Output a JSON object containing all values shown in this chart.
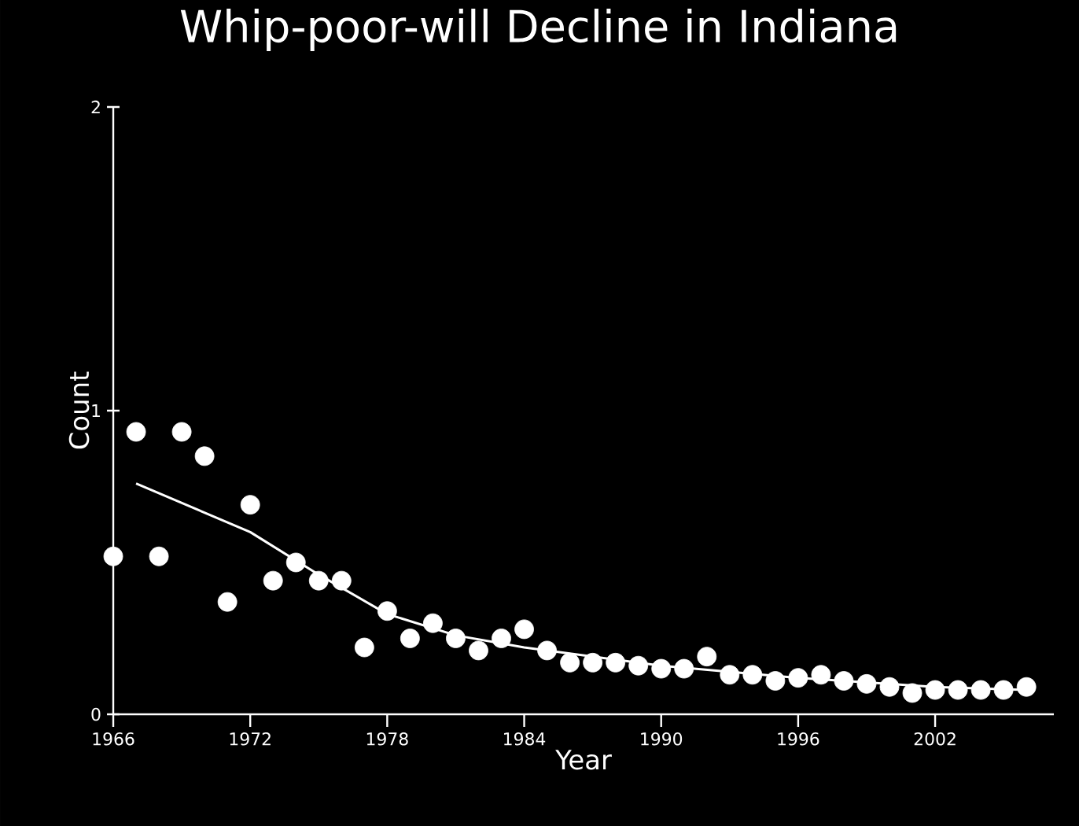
{
  "chart_data": {
    "type": "scatter",
    "title": "Whip-poor-will Decline in Indiana",
    "xlabel": "Year",
    "ylabel": "Count",
    "xlim": [
      1966,
      2007.2
    ],
    "ylim": [
      0,
      2
    ],
    "xticks": [
      1966,
      1972,
      1978,
      1984,
      1990,
      1996,
      2002
    ],
    "yticks": [
      0,
      1,
      2
    ],
    "series": [
      {
        "color": "#ffffff",
        "marker": "circle",
        "x": [
          1966,
          1967,
          1968,
          1969,
          1970,
          1971,
          1972,
          1973,
          1974,
          1975,
          1976,
          1977,
          1978,
          1979,
          1980,
          1981,
          1982,
          1983,
          1984,
          1985,
          1986,
          1987,
          1988,
          1989,
          1990,
          1991,
          1992,
          1993,
          1994,
          1995,
          1996,
          1997,
          1998,
          1999,
          2000,
          2001,
          2002,
          2003,
          2004,
          2005,
          2006
        ],
        "values": [
          0.52,
          0.93,
          0.52,
          0.93,
          0.85,
          0.37,
          0.69,
          0.44,
          0.5,
          0.44,
          0.44,
          0.22,
          0.34,
          0.25,
          0.3,
          0.25,
          0.21,
          0.25,
          0.28,
          0.21,
          0.17,
          0.17,
          0.17,
          0.16,
          0.15,
          0.15,
          0.19,
          0.13,
          0.13,
          0.11,
          0.12,
          0.13,
          0.11,
          0.1,
          0.09,
          0.07,
          0.08,
          0.08,
          0.08,
          0.08,
          0.09
        ]
      },
      {
        "type": "line",
        "color": "#ffffff",
        "marker": "none",
        "line_style": "solid",
        "x": [
          1967,
          1972,
          1975,
          1978,
          1981,
          1984,
          1990,
          1996,
          2002,
          2006
        ],
        "values": [
          0.76,
          0.6,
          0.46,
          0.33,
          0.26,
          0.22,
          0.16,
          0.12,
          0.09,
          0.08
        ]
      }
    ]
  }
}
